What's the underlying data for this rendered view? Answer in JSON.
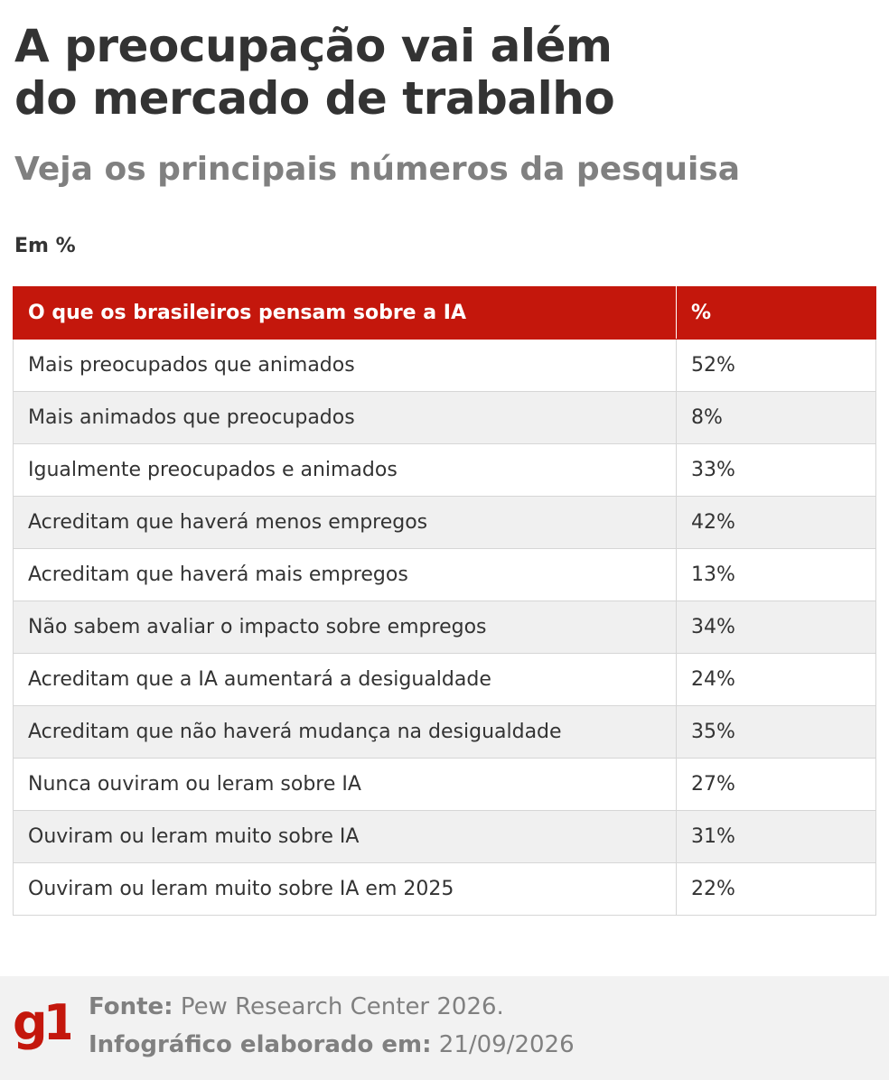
{
  "header": {
    "title_line1": "A preocupação vai além",
    "title_line2": "do mercado de trabalho",
    "subtitle": "Veja os principais números da pesquisa",
    "unit_label": "Em %"
  },
  "chart_data": {
    "type": "table",
    "columns": [
      "O que os brasileiros pensam sobre a IA",
      "%"
    ],
    "rows": [
      {
        "label": "Mais preocupados que animados",
        "value": "52%"
      },
      {
        "label": "Mais animados que preocupados",
        "value": "8%"
      },
      {
        "label": "Igualmente preocupados e animados",
        "value": "33%"
      },
      {
        "label": "Acreditam que haverá menos empregos",
        "value": "42%"
      },
      {
        "label": "Acreditam que haverá mais empregos",
        "value": "13%"
      },
      {
        "label": "Não sabem avaliar o impacto sobre empregos",
        "value": "34%"
      },
      {
        "label": "Acreditam que a IA aumentará a desigualdade",
        "value": "24%"
      },
      {
        "label": "Acreditam que não haverá mudança na desigualdade",
        "value": "35%"
      },
      {
        "label": "Nunca ouviram ou leram sobre IA",
        "value": "27%"
      },
      {
        "label": "Ouviram ou leram muito sobre IA",
        "value": "31%"
      },
      {
        "label": "Ouviram ou leram muito sobre IA em 2025",
        "value": "22%"
      }
    ]
  },
  "footer": {
    "logo": "g1",
    "source_label": "Fonte:",
    "source_value": "Pew Research Center 2026.",
    "date_label": "Infográfico elaborado em:",
    "date_value": "21/09/2026"
  },
  "colors": {
    "accent": "#c4170c",
    "title": "#333333",
    "subtitle": "#808080",
    "stripe": "#f0f0f0",
    "footer_bg": "#f2f2f2"
  }
}
